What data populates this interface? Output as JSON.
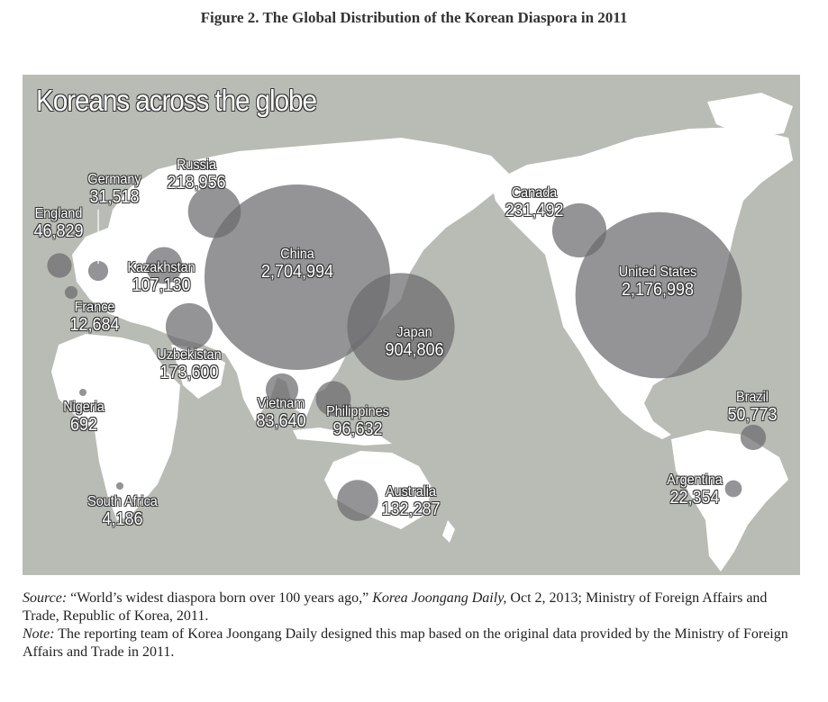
{
  "figure_title": "Figure 2. The Global Distribution of the Korean Diaspora in 2011",
  "map_title": "Koreans across the globe",
  "colors": {
    "ocean": "#b9bcb5",
    "land": "#ffffff",
    "bubble": "#6b6b6e",
    "bubble_opacity": 0.72,
    "label_text": "#ffffff"
  },
  "countries": [
    {
      "name": "Russia",
      "value": "218,956",
      "count": 218956
    },
    {
      "name": "Germany",
      "value": "31,518",
      "count": 31518
    },
    {
      "name": "England",
      "value": "46,829",
      "count": 46829
    },
    {
      "name": "Kazakhstan",
      "value": "107,130",
      "count": 107130
    },
    {
      "name": "France",
      "value": "12,684",
      "count": 12684
    },
    {
      "name": "China",
      "value": "2,704,994",
      "count": 2704994
    },
    {
      "name": "Uzbekistan",
      "value": "173,600",
      "count": 173600
    },
    {
      "name": "Japan",
      "value": "904,806",
      "count": 904806
    },
    {
      "name": "Nigeria",
      "value": "692",
      "count": 692
    },
    {
      "name": "Vietnam",
      "value": "83,640",
      "count": 83640
    },
    {
      "name": "Philippines",
      "value": "96,632",
      "count": 96632
    },
    {
      "name": "South Africa",
      "value": "4,186",
      "count": 4186
    },
    {
      "name": "Australia",
      "value": "132,287",
      "count": 132287
    },
    {
      "name": "Canada",
      "value": "231,492",
      "count": 231492
    },
    {
      "name": "United States",
      "value": "2,176,998",
      "count": 2176998
    },
    {
      "name": "Brazil",
      "value": "50,773",
      "count": 50773
    },
    {
      "name": "Argentina",
      "value": "22,354",
      "count": 22354
    }
  ],
  "source": {
    "label": "Source:",
    "text_a": " “World’s widest diaspora born over 100 years ago,” ",
    "publication": "Korea Joongang Daily,",
    "text_b": " Oct 2, 2013; Ministry of Foreign Affairs and Trade, Republic of Korea, 2011."
  },
  "note": {
    "label": "Note:",
    "text": " The reporting team of Korea Joongang Daily designed this map based on the original data provided by the Ministry of Foreign Affairs and Trade in 2011."
  }
}
